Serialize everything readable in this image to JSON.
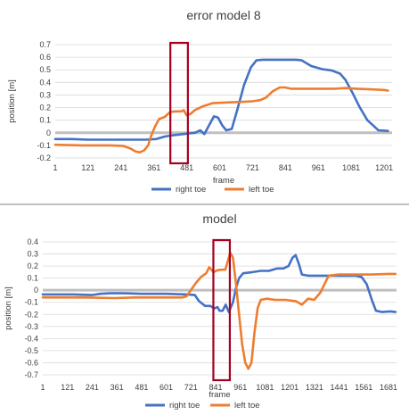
{
  "colors": {
    "right_toe": "#4472C4",
    "left_toe": "#ED7D31",
    "highlight_box": "#A50021",
    "grid": "#D9D9D9",
    "zero_line": "#BFBFBF",
    "divider": "#808080",
    "text": "#404040"
  },
  "chart_data": [
    {
      "type": "line",
      "title": "error model 8",
      "xlabel": "frame",
      "ylabel": "position [m]",
      "xlim": [
        1,
        1230
      ],
      "ylim": [
        -0.2,
        0.7
      ],
      "yticks": [
        -0.2,
        -0.1,
        0,
        0.1,
        0.2,
        0.3,
        0.4,
        0.5,
        0.6,
        0.7
      ],
      "ytick_labels": [
        "-0.2",
        "-0.1",
        "0",
        "0.1",
        "0.2",
        "0.3",
        "0.4",
        "0.5",
        "0.6",
        "0.7"
      ],
      "xtick_labels": [
        "1",
        "121",
        "241",
        "361",
        "481",
        "601",
        "721",
        "841",
        "961",
        "1081",
        "1201"
      ],
      "xtick_values": [
        1,
        121,
        241,
        361,
        481,
        601,
        721,
        841,
        961,
        1081,
        1201
      ],
      "grid": true,
      "legend": "bottom",
      "highlight_frames": [
        421,
        485
      ],
      "series": [
        {
          "name": "right toe",
          "color_key": "right_toe",
          "points": [
            [
              1,
              -0.05
            ],
            [
              60,
              -0.05
            ],
            [
              120,
              -0.055
            ],
            [
              240,
              -0.055
            ],
            [
              330,
              -0.055
            ],
            [
              370,
              -0.05
            ],
            [
              400,
              -0.03
            ],
            [
              430,
              -0.02
            ],
            [
              470,
              -0.01
            ],
            [
              490,
              -0.005
            ],
            [
              510,
              0.0
            ],
            [
              530,
              0.02
            ],
            [
              545,
              -0.01
            ],
            [
              560,
              0.05
            ],
            [
              580,
              0.13
            ],
            [
              595,
              0.12
            ],
            [
              610,
              0.06
            ],
            [
              625,
              0.02
            ],
            [
              645,
              0.03
            ],
            [
              665,
              0.18
            ],
            [
              690,
              0.38
            ],
            [
              715,
              0.52
            ],
            [
              735,
              0.575
            ],
            [
              760,
              0.58
            ],
            [
              820,
              0.58
            ],
            [
              880,
              0.58
            ],
            [
              900,
              0.575
            ],
            [
              935,
              0.53
            ],
            [
              975,
              0.505
            ],
            [
              1010,
              0.495
            ],
            [
              1040,
              0.47
            ],
            [
              1060,
              0.42
            ],
            [
              1085,
              0.32
            ],
            [
              1110,
              0.21
            ],
            [
              1140,
              0.1
            ],
            [
              1165,
              0.05
            ],
            [
              1180,
              0.02
            ],
            [
              1215,
              0.015
            ]
          ]
        },
        {
          "name": "left toe",
          "color_key": "left_toe",
          "points": [
            [
              1,
              -0.095
            ],
            [
              100,
              -0.1
            ],
            [
              200,
              -0.1
            ],
            [
              250,
              -0.105
            ],
            [
              275,
              -0.125
            ],
            [
              295,
              -0.15
            ],
            [
              310,
              -0.155
            ],
            [
              325,
              -0.14
            ],
            [
              340,
              -0.1
            ],
            [
              350,
              -0.03
            ],
            [
              365,
              0.05
            ],
            [
              380,
              0.11
            ],
            [
              400,
              0.125
            ],
            [
              420,
              0.165
            ],
            [
              440,
              0.17
            ],
            [
              460,
              0.17
            ],
            [
              470,
              0.18
            ],
            [
              480,
              0.14
            ],
            [
              495,
              0.15
            ],
            [
              510,
              0.18
            ],
            [
              540,
              0.21
            ],
            [
              575,
              0.235
            ],
            [
              620,
              0.24
            ],
            [
              680,
              0.245
            ],
            [
              720,
              0.25
            ],
            [
              750,
              0.26
            ],
            [
              770,
              0.28
            ],
            [
              795,
              0.33
            ],
            [
              820,
              0.36
            ],
            [
              840,
              0.36
            ],
            [
              860,
              0.35
            ],
            [
              900,
              0.35
            ],
            [
              960,
              0.35
            ],
            [
              1020,
              0.35
            ],
            [
              1060,
              0.355
            ],
            [
              1100,
              0.35
            ],
            [
              1150,
              0.345
            ],
            [
              1200,
              0.34
            ],
            [
              1215,
              0.335
            ]
          ]
        }
      ]
    },
    {
      "type": "line",
      "title": "model",
      "xlabel": "frame",
      "ylabel": "position [m]",
      "xlim": [
        1,
        1720
      ],
      "ylim": [
        -0.7,
        0.4
      ],
      "yticks": [
        -0.7,
        -0.6,
        -0.5,
        -0.4,
        -0.3,
        -0.2,
        -0.1,
        0,
        0.1,
        0.2,
        0.3,
        0.4
      ],
      "ytick_labels": [
        "-0.7",
        "-0.6",
        "-0.5",
        "-0.4",
        "-0.3",
        "-0.2",
        "-0.1",
        "0",
        "0.1",
        "0.2",
        "0.3",
        "0.4"
      ],
      "xtick_labels": [
        "1",
        "121",
        "241",
        "361",
        "481",
        "601",
        "721",
        "841",
        "961",
        "1081",
        "1201",
        "1321",
        "1441",
        "1561",
        "1681"
      ],
      "xtick_values": [
        1,
        121,
        241,
        361,
        481,
        601,
        721,
        841,
        961,
        1081,
        1201,
        1321,
        1441,
        1561,
        1681
      ],
      "grid": true,
      "legend": "bottom",
      "highlight_frames": [
        830,
        910
      ],
      "series": [
        {
          "name": "right toe",
          "color_key": "right_toe",
          "points": [
            [
              1,
              -0.035
            ],
            [
              150,
              -0.035
            ],
            [
              240,
              -0.04
            ],
            [
              280,
              -0.03
            ],
            [
              330,
              -0.025
            ],
            [
              400,
              -0.025
            ],
            [
              480,
              -0.03
            ],
            [
              600,
              -0.03
            ],
            [
              700,
              -0.035
            ],
            [
              740,
              -0.04
            ],
            [
              760,
              -0.09
            ],
            [
              790,
              -0.13
            ],
            [
              815,
              -0.13
            ],
            [
              835,
              -0.15
            ],
            [
              850,
              -0.14
            ],
            [
              860,
              -0.17
            ],
            [
              875,
              -0.17
            ],
            [
              890,
              -0.12
            ],
            [
              905,
              -0.18
            ],
            [
              925,
              -0.1
            ],
            [
              940,
              0.02
            ],
            [
              955,
              0.1
            ],
            [
              975,
              0.14
            ],
            [
              1020,
              0.15
            ],
            [
              1060,
              0.16
            ],
            [
              1100,
              0.16
            ],
            [
              1140,
              0.18
            ],
            [
              1170,
              0.18
            ],
            [
              1195,
              0.2
            ],
            [
              1215,
              0.27
            ],
            [
              1230,
              0.29
            ],
            [
              1245,
              0.22
            ],
            [
              1260,
              0.13
            ],
            [
              1290,
              0.12
            ],
            [
              1340,
              0.12
            ],
            [
              1400,
              0.12
            ],
            [
              1460,
              0.12
            ],
            [
              1520,
              0.12
            ],
            [
              1550,
              0.11
            ],
            [
              1575,
              0.05
            ],
            [
              1600,
              -0.08
            ],
            [
              1620,
              -0.17
            ],
            [
              1650,
              -0.18
            ],
            [
              1690,
              -0.175
            ],
            [
              1715,
              -0.18
            ]
          ]
        },
        {
          "name": "left toe",
          "color_key": "left_toe",
          "points": [
            [
              1,
              -0.06
            ],
            [
              200,
              -0.06
            ],
            [
              350,
              -0.065
            ],
            [
              450,
              -0.06
            ],
            [
              600,
              -0.06
            ],
            [
              680,
              -0.06
            ],
            [
              700,
              -0.05
            ],
            [
              720,
              0.0
            ],
            [
              745,
              0.06
            ],
            [
              770,
              0.11
            ],
            [
              795,
              0.14
            ],
            [
              810,
              0.19
            ],
            [
              830,
              0.15
            ],
            [
              850,
              0.165
            ],
            [
              870,
              0.17
            ],
            [
              888,
              0.17
            ],
            [
              900,
              0.24
            ],
            [
              912,
              0.31
            ],
            [
              925,
              0.27
            ],
            [
              940,
              0.05
            ],
            [
              955,
              -0.2
            ],
            [
              970,
              -0.45
            ],
            [
              985,
              -0.6
            ],
            [
              1000,
              -0.65
            ],
            [
              1015,
              -0.6
            ],
            [
              1030,
              -0.35
            ],
            [
              1045,
              -0.15
            ],
            [
              1060,
              -0.08
            ],
            [
              1090,
              -0.07
            ],
            [
              1130,
              -0.08
            ],
            [
              1180,
              -0.08
            ],
            [
              1230,
              -0.09
            ],
            [
              1260,
              -0.12
            ],
            [
              1290,
              -0.07
            ],
            [
              1320,
              -0.08
            ],
            [
              1350,
              -0.02
            ],
            [
              1390,
              0.12
            ],
            [
              1440,
              0.13
            ],
            [
              1520,
              0.13
            ],
            [
              1600,
              0.13
            ],
            [
              1680,
              0.135
            ],
            [
              1715,
              0.135
            ]
          ]
        }
      ]
    }
  ]
}
